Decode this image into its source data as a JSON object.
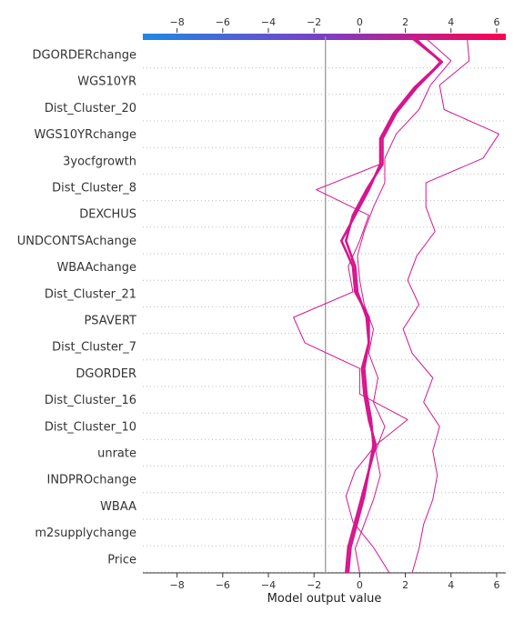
{
  "chart_data": {
    "type": "line",
    "xlabel": "Model output value",
    "xlim": [
      -9.5,
      6.4
    ],
    "xticks": [
      -8,
      -6,
      -4,
      -2,
      0,
      2,
      4,
      6
    ],
    "xtick_labels": [
      "−8",
      "−6",
      "−4",
      "−2",
      "0",
      "2",
      "4",
      "6"
    ],
    "base_value": -1.5,
    "colorbar_range": [
      -9.5,
      6.4
    ],
    "colors": {
      "low": "#1e88e5",
      "mid": "#7b3fc4",
      "high": "#ff0052",
      "line": "#d6168c",
      "baseline": "#999999"
    },
    "grid": "dotted-horizontal",
    "features": [
      "DGORDERchange",
      "WGS10YR",
      "Dist_Cluster_20",
      "WGS10YRchange",
      "3yocfgrowth",
      "Dist_Cluster_8",
      "DEXCHUS",
      "UNDCONTSAchange",
      "WBAAchange",
      "Dist_Cluster_21",
      "PSAVERT",
      "Dist_Cluster_7",
      "DGORDER",
      "Dist_Cluster_16",
      "Dist_Cluster_10",
      "unrate",
      "INDPROchange",
      "WBAA",
      "m2supplychange",
      "Price"
    ],
    "series": [
      {
        "values": [
          4.7,
          4.8,
          3.5,
          3.7,
          6.1,
          5.4,
          2.9,
          2.9,
          3.3,
          2.5,
          2.1,
          2.6,
          1.9,
          2.3,
          3.2,
          2.8,
          3.5,
          3.2,
          3.4,
          3.2,
          2.8,
          2.6,
          2.3
        ]
      },
      {
        "values": [
          2.8,
          4.0,
          3.1,
          2.6,
          1.6,
          1.1,
          1.1,
          0.6,
          0.2,
          -0.1,
          0.0,
          0.2,
          0.6,
          0.4,
          0.8,
          0.6,
          1.1,
          0.7,
          0.9,
          0.6,
          0.2,
          -0.2,
          0.0
        ]
      },
      {
        "values": [
          2.4,
          3.5,
          2.5,
          1.5,
          0.9,
          0.9,
          -1.9,
          0.4,
          0.0,
          -0.5,
          -0.3,
          -2.9,
          -2.4,
          0.0,
          0.0,
          2.1,
          0.7,
          -0.2,
          -0.6,
          -0.3,
          0.6,
          1.3
        ]
      },
      {
        "values": [
          2.3,
          3.6,
          2.5,
          1.6,
          1.0,
          1.0,
          0.3,
          -0.3,
          -0.6,
          -0.2,
          -0.1,
          0.3,
          0.4,
          0.1,
          0.2,
          0.4,
          0.7,
          0.4,
          0.2,
          -0.1,
          -0.4,
          -0.5
        ]
      },
      {
        "values": [
          2.2,
          3.6,
          2.4,
          1.5,
          0.9,
          0.9,
          0.4,
          -0.2,
          -0.8,
          -0.3,
          -0.2,
          0.4,
          0.4,
          0.2,
          0.3,
          0.5,
          0.6,
          0.4,
          0.1,
          -0.2,
          -0.5,
          -0.6
        ]
      }
    ],
    "bold_series": [
      3,
      4
    ]
  }
}
